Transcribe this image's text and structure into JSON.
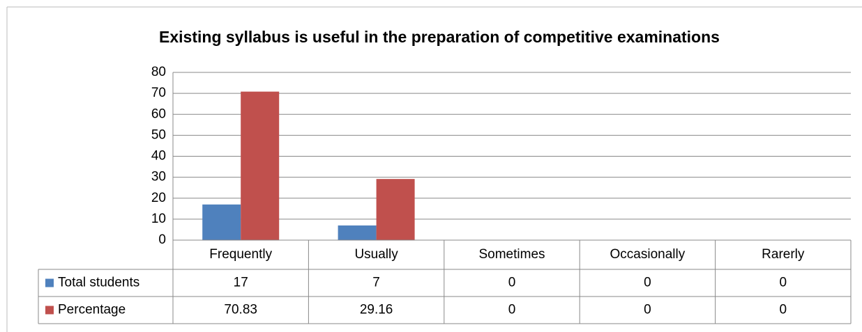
{
  "chart_data": {
    "type": "bar",
    "title": "Existing syllabus is useful in the preparation of competitive examinations",
    "categories": [
      "Frequently",
      "Usually",
      "Sometimes",
      "Occasionally",
      "Rarerly"
    ],
    "series": [
      {
        "name": "Total students",
        "color": "#4f81bd",
        "values": [
          17,
          7,
          0,
          0,
          0
        ]
      },
      {
        "name": "Percentage",
        "color": "#c0504d",
        "values": [
          70.83,
          29.16,
          0,
          0,
          0
        ]
      }
    ],
    "ylim": [
      0,
      80
    ],
    "yticks": [
      0,
      10,
      20,
      30,
      40,
      50,
      60,
      70,
      80
    ],
    "grid": true,
    "data_table": true
  }
}
